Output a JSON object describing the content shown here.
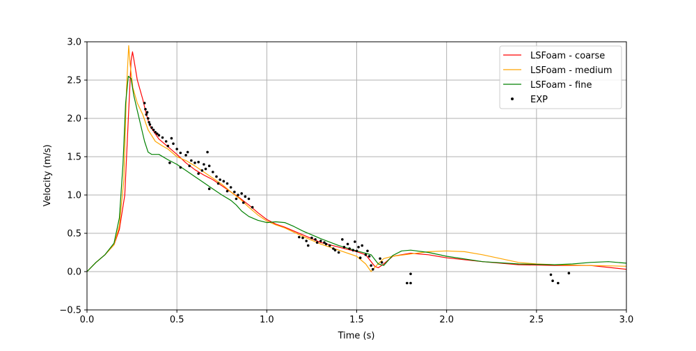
{
  "chart_data": {
    "type": "line",
    "xlabel": "Time (s)",
    "ylabel": "Velocity (m/s)",
    "xlim": [
      0,
      3
    ],
    "ylim": [
      -0.5,
      3
    ],
    "xticks": [
      0,
      0.5,
      1,
      1.5,
      2,
      2.5,
      3
    ],
    "xtick_labels": [
      "0.0",
      "0.5",
      "1.0",
      "1.5",
      "2.0",
      "2.5",
      "3.0"
    ],
    "yticks": [
      -0.5,
      0,
      0.5,
      1,
      1.5,
      2,
      2.5,
      3
    ],
    "ytick_labels": [
      "−0.5",
      "0.0",
      "0.5",
      "1.0",
      "1.5",
      "2.0",
      "2.5",
      "3.0"
    ],
    "grid": true,
    "legend_position": "top-right",
    "series": [
      {
        "name": "LSFoam - coarse",
        "color": "#ff0000",
        "points": [
          [
            0,
            0
          ],
          [
            0.05,
            0.12
          ],
          [
            0.1,
            0.22
          ],
          [
            0.15,
            0.35
          ],
          [
            0.18,
            0.55
          ],
          [
            0.21,
            1.0
          ],
          [
            0.23,
            2.0
          ],
          [
            0.245,
            2.75
          ],
          [
            0.253,
            2.87
          ],
          [
            0.262,
            2.75
          ],
          [
            0.28,
            2.5
          ],
          [
            0.31,
            2.25
          ],
          [
            0.33,
            2.05
          ],
          [
            0.35,
            1.9
          ],
          [
            0.4,
            1.73
          ],
          [
            0.45,
            1.63
          ],
          [
            0.5,
            1.53
          ],
          [
            0.55,
            1.42
          ],
          [
            0.6,
            1.33
          ],
          [
            0.65,
            1.26
          ],
          [
            0.7,
            1.2
          ],
          [
            0.75,
            1.12
          ],
          [
            0.8,
            1.04
          ],
          [
            0.85,
            0.96
          ],
          [
            0.9,
            0.87
          ],
          [
            0.95,
            0.77
          ],
          [
            1.0,
            0.68
          ],
          [
            1.05,
            0.62
          ],
          [
            1.1,
            0.58
          ],
          [
            1.2,
            0.48
          ],
          [
            1.3,
            0.38
          ],
          [
            1.4,
            0.32
          ],
          [
            1.5,
            0.26
          ],
          [
            1.55,
            0.22
          ],
          [
            1.6,
            0.07
          ],
          [
            1.62,
            0.05
          ],
          [
            1.65,
            0.1
          ],
          [
            1.7,
            0.2
          ],
          [
            1.8,
            0.24
          ],
          [
            1.9,
            0.22
          ],
          [
            2.0,
            0.18
          ],
          [
            2.2,
            0.13
          ],
          [
            2.4,
            0.09
          ],
          [
            2.6,
            0.08
          ],
          [
            2.8,
            0.08
          ],
          [
            3.0,
            0.03
          ]
        ]
      },
      {
        "name": "LSFoam - medium",
        "color": "#ffa500",
        "points": [
          [
            0,
            0
          ],
          [
            0.05,
            0.12
          ],
          [
            0.1,
            0.22
          ],
          [
            0.15,
            0.35
          ],
          [
            0.18,
            0.6
          ],
          [
            0.205,
            1.2
          ],
          [
            0.22,
            2.4
          ],
          [
            0.232,
            2.95
          ],
          [
            0.24,
            2.7
          ],
          [
            0.255,
            2.4
          ],
          [
            0.28,
            2.2
          ],
          [
            0.31,
            2.05
          ],
          [
            0.34,
            1.85
          ],
          [
            0.38,
            1.7
          ],
          [
            0.42,
            1.64
          ],
          [
            0.45,
            1.6
          ],
          [
            0.5,
            1.5
          ],
          [
            0.55,
            1.45
          ],
          [
            0.6,
            1.38
          ],
          [
            0.65,
            1.3
          ],
          [
            0.7,
            1.22
          ],
          [
            0.75,
            1.14
          ],
          [
            0.8,
            1.04
          ],
          [
            0.85,
            0.95
          ],
          [
            0.9,
            0.84
          ],
          [
            0.95,
            0.74
          ],
          [
            1.0,
            0.66
          ],
          [
            1.05,
            0.61
          ],
          [
            1.1,
            0.57
          ],
          [
            1.2,
            0.46
          ],
          [
            1.3,
            0.36
          ],
          [
            1.4,
            0.28
          ],
          [
            1.5,
            0.2
          ],
          [
            1.55,
            0.1
          ],
          [
            1.58,
            0.0
          ],
          [
            1.61,
            0.08
          ],
          [
            1.65,
            0.17
          ],
          [
            1.7,
            0.2
          ],
          [
            1.8,
            0.23
          ],
          [
            1.9,
            0.26
          ],
          [
            2.0,
            0.27
          ],
          [
            2.1,
            0.26
          ],
          [
            2.2,
            0.22
          ],
          [
            2.3,
            0.17
          ],
          [
            2.4,
            0.12
          ],
          [
            2.5,
            0.1
          ],
          [
            2.6,
            0.09
          ],
          [
            2.8,
            0.08
          ],
          [
            3.0,
            0.07
          ]
        ]
      },
      {
        "name": "LSFoam - fine",
        "color": "#008000",
        "points": [
          [
            0,
            0
          ],
          [
            0.05,
            0.12
          ],
          [
            0.1,
            0.22
          ],
          [
            0.15,
            0.37
          ],
          [
            0.18,
            0.7
          ],
          [
            0.2,
            1.4
          ],
          [
            0.215,
            2.2
          ],
          [
            0.23,
            2.55
          ],
          [
            0.245,
            2.52
          ],
          [
            0.26,
            2.3
          ],
          [
            0.28,
            2.1
          ],
          [
            0.3,
            1.9
          ],
          [
            0.32,
            1.7
          ],
          [
            0.34,
            1.56
          ],
          [
            0.36,
            1.53
          ],
          [
            0.4,
            1.53
          ],
          [
            0.45,
            1.46
          ],
          [
            0.5,
            1.4
          ],
          [
            0.55,
            1.32
          ],
          [
            0.6,
            1.24
          ],
          [
            0.65,
            1.16
          ],
          [
            0.7,
            1.08
          ],
          [
            0.75,
            1.0
          ],
          [
            0.8,
            0.93
          ],
          [
            0.83,
            0.87
          ],
          [
            0.86,
            0.79
          ],
          [
            0.9,
            0.72
          ],
          [
            0.95,
            0.67
          ],
          [
            1.0,
            0.64
          ],
          [
            1.05,
            0.65
          ],
          [
            1.1,
            0.64
          ],
          [
            1.15,
            0.59
          ],
          [
            1.2,
            0.53
          ],
          [
            1.3,
            0.43
          ],
          [
            1.4,
            0.34
          ],
          [
            1.5,
            0.27
          ],
          [
            1.55,
            0.24
          ],
          [
            1.58,
            0.22
          ],
          [
            1.62,
            0.1
          ],
          [
            1.65,
            0.08
          ],
          [
            1.7,
            0.21
          ],
          [
            1.75,
            0.27
          ],
          [
            1.8,
            0.28
          ],
          [
            1.9,
            0.25
          ],
          [
            2.0,
            0.2
          ],
          [
            2.2,
            0.13
          ],
          [
            2.4,
            0.1
          ],
          [
            2.6,
            0.09
          ],
          [
            2.7,
            0.1
          ],
          [
            2.8,
            0.12
          ],
          [
            2.9,
            0.13
          ],
          [
            3.0,
            0.11
          ]
        ]
      },
      {
        "name": "EXP",
        "color": "#000000",
        "marker": "dot",
        "points": [
          [
            0.32,
            2.2
          ],
          [
            0.325,
            2.12
          ],
          [
            0.33,
            2.05
          ],
          [
            0.335,
            2.08
          ],
          [
            0.34,
            2.0
          ],
          [
            0.345,
            1.95
          ],
          [
            0.35,
            1.92
          ],
          [
            0.36,
            1.88
          ],
          [
            0.37,
            1.85
          ],
          [
            0.38,
            1.82
          ],
          [
            0.39,
            1.8
          ],
          [
            0.4,
            1.78
          ],
          [
            0.42,
            1.75
          ],
          [
            0.44,
            1.7
          ],
          [
            0.45,
            1.64
          ],
          [
            0.47,
            1.74
          ],
          [
            0.48,
            1.67
          ],
          [
            0.5,
            1.6
          ],
          [
            0.52,
            1.55
          ],
          [
            0.55,
            1.52
          ],
          [
            0.56,
            1.56
          ],
          [
            0.58,
            1.45
          ],
          [
            0.6,
            1.42
          ],
          [
            0.62,
            1.43
          ],
          [
            0.64,
            1.32
          ],
          [
            0.65,
            1.4
          ],
          [
            0.66,
            1.34
          ],
          [
            0.67,
            1.56
          ],
          [
            0.68,
            1.38
          ],
          [
            0.7,
            1.3
          ],
          [
            0.72,
            1.24
          ],
          [
            0.74,
            1.2
          ],
          [
            0.76,
            1.18
          ],
          [
            0.78,
            1.15
          ],
          [
            0.8,
            1.1
          ],
          [
            0.82,
            1.04
          ],
          [
            0.84,
            1.0
          ],
          [
            0.86,
            1.02
          ],
          [
            0.88,
            0.98
          ],
          [
            0.9,
            0.95
          ],
          [
            0.92,
            0.84
          ],
          [
            0.46,
            1.42
          ],
          [
            0.52,
            1.36
          ],
          [
            0.57,
            1.38
          ],
          [
            0.62,
            1.28
          ],
          [
            0.68,
            1.08
          ],
          [
            0.73,
            1.15
          ],
          [
            0.78,
            1.05
          ],
          [
            0.83,
            0.95
          ],
          [
            0.87,
            0.9
          ],
          [
            1.18,
            0.45
          ],
          [
            1.2,
            0.44
          ],
          [
            1.22,
            0.4
          ],
          [
            1.23,
            0.34
          ],
          [
            1.25,
            0.44
          ],
          [
            1.27,
            0.42
          ],
          [
            1.28,
            0.38
          ],
          [
            1.3,
            0.4
          ],
          [
            1.32,
            0.38
          ],
          [
            1.33,
            0.36
          ],
          [
            1.35,
            0.34
          ],
          [
            1.37,
            0.3
          ],
          [
            1.38,
            0.28
          ],
          [
            1.4,
            0.25
          ],
          [
            1.42,
            0.42
          ],
          [
            1.43,
            0.32
          ],
          [
            1.45,
            0.36
          ],
          [
            1.46,
            0.3
          ],
          [
            1.48,
            0.28
          ],
          [
            1.49,
            0.39
          ],
          [
            1.5,
            0.27
          ],
          [
            1.51,
            0.32
          ],
          [
            1.52,
            0.18
          ],
          [
            1.53,
            0.34
          ],
          [
            1.55,
            0.22
          ],
          [
            1.56,
            0.27
          ],
          [
            1.57,
            0.2
          ],
          [
            1.58,
            0.08
          ],
          [
            1.59,
            0.03
          ],
          [
            1.63,
            0.17
          ],
          [
            1.64,
            0.12
          ],
          [
            1.78,
            -0.15
          ],
          [
            1.8,
            -0.15
          ],
          [
            1.8,
            -0.03
          ],
          [
            2.58,
            -0.04
          ],
          [
            2.59,
            -0.12
          ],
          [
            2.62,
            -0.15
          ],
          [
            2.68,
            -0.02
          ]
        ]
      }
    ]
  }
}
